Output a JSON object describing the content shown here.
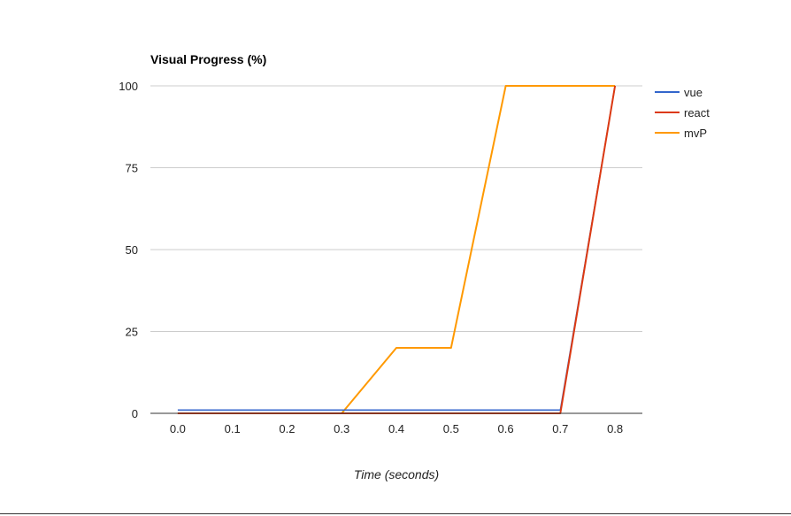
{
  "chart_data": {
    "type": "line",
    "title": "Visual Progress (%)",
    "xlabel": "Time (seconds)",
    "ylabel": "",
    "xlim": [
      -0.05,
      0.85
    ],
    "ylim": [
      0,
      100
    ],
    "x_ticks": [
      "0.0",
      "0.1",
      "0.2",
      "0.3",
      "0.4",
      "0.5",
      "0.6",
      "0.7",
      "0.8"
    ],
    "y_ticks": [
      "0",
      "25",
      "50",
      "75",
      "100"
    ],
    "grid": true,
    "legend_position": "right",
    "series": [
      {
        "name": "vue",
        "color": "#3366cc",
        "points": [
          [
            0.0,
            1
          ],
          [
            0.3,
            1
          ],
          [
            0.4,
            1
          ],
          [
            0.5,
            1
          ],
          [
            0.6,
            1
          ],
          [
            0.7,
            1
          ],
          [
            0.8,
            100
          ]
        ]
      },
      {
        "name": "react",
        "color": "#dc3912",
        "points": [
          [
            0.0,
            0
          ],
          [
            0.3,
            0
          ],
          [
            0.4,
            0
          ],
          [
            0.5,
            0
          ],
          [
            0.6,
            0
          ],
          [
            0.7,
            0
          ],
          [
            0.8,
            100
          ]
        ]
      },
      {
        "name": "mvP",
        "color": "#ff9900",
        "points": [
          [
            0.0,
            0
          ],
          [
            0.3,
            0
          ],
          [
            0.4,
            20
          ],
          [
            0.5,
            20
          ],
          [
            0.6,
            100
          ],
          [
            0.7,
            100
          ],
          [
            0.8,
            100
          ]
        ]
      }
    ]
  }
}
